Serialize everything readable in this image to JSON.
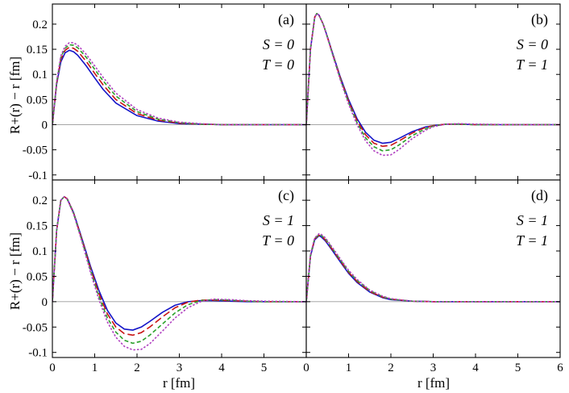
{
  "chart_data": {
    "type": "line",
    "shared_axes": {
      "xlabel": "r [fm]",
      "ylabel": "R+(r) − r [fm]",
      "xlim": [
        0,
        6
      ],
      "ylim": [
        -0.11,
        0.24
      ],
      "x_ticks": [
        0,
        1,
        2,
        3,
        4,
        5,
        6
      ],
      "y_ticks": [
        -0.1,
        -0.05,
        0,
        0.05,
        0.1,
        0.15,
        0.2
      ],
      "y_tick_labels": [
        "-0.1",
        "-0.05",
        "0",
        "0.05",
        "0.1",
        "0.15",
        "0.2"
      ]
    },
    "series_styles": [
      {
        "color": "#1414c8",
        "dash": "none"
      },
      {
        "color": "#c81414",
        "dash": "9,4"
      },
      {
        "color": "#2aa02a",
        "dash": "5,3"
      },
      {
        "color": "#b040c0",
        "dash": "2.5,2"
      }
    ],
    "panels": [
      {
        "id": "a",
        "label": "(a)",
        "S_text": "S = 0",
        "T_text": "T = 0",
        "series": [
          {
            "x": [
              0,
              0.1,
              0.2,
              0.3,
              0.4,
              0.5,
              0.6,
              0.8,
              1.0,
              1.2,
              1.5,
              2.0,
              2.5,
              3.0,
              3.5,
              4.0,
              5.0,
              6.0
            ],
            "y": [
              0,
              0.08,
              0.125,
              0.143,
              0.148,
              0.145,
              0.138,
              0.117,
              0.093,
              0.07,
              0.043,
              0.018,
              0.007,
              0.002,
              0.001,
              0,
              0,
              0
            ]
          },
          {
            "x": [
              0,
              0.1,
              0.2,
              0.3,
              0.4,
              0.5,
              0.6,
              0.8,
              1.0,
              1.2,
              1.5,
              2.0,
              2.5,
              3.0,
              3.5,
              4.0,
              5.0,
              6.0
            ],
            "y": [
              0,
              0.082,
              0.13,
              0.148,
              0.154,
              0.152,
              0.146,
              0.126,
              0.102,
              0.079,
              0.05,
              0.022,
              0.009,
              0.003,
              0.001,
              0,
              0,
              0
            ]
          },
          {
            "x": [
              0,
              0.1,
              0.2,
              0.3,
              0.4,
              0.5,
              0.6,
              0.8,
              1.0,
              1.2,
              1.5,
              2.0,
              2.5,
              3.0,
              3.5,
              4.0,
              5.0,
              6.0
            ],
            "y": [
              0,
              0.084,
              0.134,
              0.152,
              0.159,
              0.158,
              0.153,
              0.134,
              0.11,
              0.087,
              0.057,
              0.026,
              0.011,
              0.004,
              0.001,
              0,
              0,
              0
            ]
          },
          {
            "x": [
              0,
              0.1,
              0.2,
              0.3,
              0.4,
              0.5,
              0.6,
              0.8,
              1.0,
              1.2,
              1.5,
              2.0,
              2.5,
              3.0,
              3.5,
              4.0,
              5.0,
              6.0
            ],
            "y": [
              0,
              0.086,
              0.137,
              0.156,
              0.163,
              0.163,
              0.158,
              0.14,
              0.117,
              0.094,
              0.063,
              0.03,
              0.013,
              0.005,
              0.002,
              0,
              0,
              0
            ]
          }
        ]
      },
      {
        "id": "b",
        "label": "(b)",
        "S_text": "S = 0",
        "T_text": "T = 1",
        "series": [
          {
            "x": [
              0,
              0.1,
              0.2,
              0.25,
              0.3,
              0.4,
              0.5,
              0.6,
              0.8,
              1.0,
              1.2,
              1.4,
              1.6,
              1.8,
              2.0,
              2.2,
              2.5,
              2.8,
              3.0,
              3.3,
              3.6,
              4.0,
              5.0,
              6.0
            ],
            "y": [
              0,
              0.15,
              0.214,
              0.221,
              0.218,
              0.2,
              0.175,
              0.148,
              0.096,
              0.05,
              0.012,
              -0.015,
              -0.031,
              -0.037,
              -0.035,
              -0.027,
              -0.014,
              -0.005,
              -0.002,
              0.001,
              0.001,
              0,
              0,
              0
            ]
          },
          {
            "x": [
              0,
              0.1,
              0.2,
              0.25,
              0.3,
              0.4,
              0.5,
              0.6,
              0.8,
              1.0,
              1.2,
              1.4,
              1.6,
              1.8,
              2.0,
              2.2,
              2.5,
              2.8,
              3.0,
              3.3,
              3.6,
              4.0,
              5.0,
              6.0
            ],
            "y": [
              0,
              0.15,
              0.214,
              0.221,
              0.218,
              0.2,
              0.174,
              0.147,
              0.094,
              0.047,
              0.008,
              -0.02,
              -0.037,
              -0.043,
              -0.041,
              -0.032,
              -0.017,
              -0.006,
              -0.002,
              0.001,
              0.001,
              0,
              0,
              0
            ]
          },
          {
            "x": [
              0,
              0.1,
              0.2,
              0.25,
              0.3,
              0.4,
              0.5,
              0.6,
              0.8,
              1.0,
              1.2,
              1.4,
              1.6,
              1.8,
              2.0,
              2.2,
              2.5,
              2.8,
              3.0,
              3.3,
              3.6,
              4.0,
              5.0,
              6.0
            ],
            "y": [
              0,
              0.15,
              0.214,
              0.221,
              0.218,
              0.2,
              0.174,
              0.146,
              0.092,
              0.044,
              0.004,
              -0.026,
              -0.044,
              -0.052,
              -0.05,
              -0.04,
              -0.022,
              -0.009,
              -0.003,
              0.001,
              0.001,
              0,
              0,
              0
            ]
          },
          {
            "x": [
              0,
              0.1,
              0.2,
              0.25,
              0.3,
              0.4,
              0.5,
              0.6,
              0.8,
              1.0,
              1.2,
              1.4,
              1.6,
              1.8,
              2.0,
              2.2,
              2.5,
              2.8,
              3.0,
              3.3,
              3.6,
              4.0,
              5.0,
              6.0
            ],
            "y": [
              0,
              0.15,
              0.214,
              0.221,
              0.218,
              0.2,
              0.173,
              0.145,
              0.09,
              0.041,
              0.0,
              -0.032,
              -0.052,
              -0.061,
              -0.06,
              -0.049,
              -0.028,
              -0.012,
              -0.004,
              0.001,
              0.002,
              0.001,
              0,
              0
            ]
          }
        ]
      },
      {
        "id": "c",
        "label": "(c)",
        "S_text": "S = 1",
        "T_text": "T = 0",
        "series": [
          {
            "x": [
              0,
              0.1,
              0.2,
              0.28,
              0.35,
              0.5,
              0.7,
              0.9,
              1.1,
              1.3,
              1.5,
              1.7,
              1.9,
              2.1,
              2.3,
              2.6,
              2.9,
              3.2,
              3.5,
              3.8,
              4.2,
              4.6,
              5.0,
              6.0
            ],
            "y": [
              0,
              0.14,
              0.2,
              0.207,
              0.203,
              0.176,
              0.124,
              0.07,
              0.022,
              -0.017,
              -0.042,
              -0.054,
              -0.056,
              -0.05,
              -0.039,
              -0.021,
              -0.007,
              0.0,
              0.002,
              0.002,
              0.001,
              0,
              0,
              0
            ]
          },
          {
            "x": [
              0,
              0.1,
              0.2,
              0.28,
              0.35,
              0.5,
              0.7,
              0.9,
              1.1,
              1.3,
              1.5,
              1.7,
              1.9,
              2.1,
              2.3,
              2.6,
              2.9,
              3.2,
              3.5,
              3.8,
              4.2,
              4.6,
              5.0,
              6.0
            ],
            "y": [
              0,
              0.14,
              0.2,
              0.207,
              0.203,
              0.175,
              0.122,
              0.066,
              0.016,
              -0.024,
              -0.05,
              -0.063,
              -0.066,
              -0.061,
              -0.05,
              -0.03,
              -0.012,
              -0.001,
              0.003,
              0.003,
              0.002,
              0.001,
              0,
              0
            ]
          },
          {
            "x": [
              0,
              0.1,
              0.2,
              0.28,
              0.35,
              0.5,
              0.7,
              0.9,
              1.1,
              1.3,
              1.5,
              1.7,
              1.9,
              2.1,
              2.3,
              2.6,
              2.9,
              3.2,
              3.5,
              3.8,
              4.2,
              4.6,
              5.0,
              6.0
            ],
            "y": [
              0,
              0.14,
              0.2,
              0.207,
              0.202,
              0.174,
              0.12,
              0.062,
              0.01,
              -0.032,
              -0.06,
              -0.076,
              -0.082,
              -0.078,
              -0.066,
              -0.044,
              -0.022,
              -0.006,
              0.002,
              0.004,
              0.003,
              0.001,
              0,
              0
            ]
          },
          {
            "x": [
              0,
              0.1,
              0.2,
              0.28,
              0.35,
              0.5,
              0.7,
              0.9,
              1.1,
              1.3,
              1.5,
              1.7,
              1.9,
              2.1,
              2.3,
              2.6,
              2.9,
              3.2,
              3.5,
              3.8,
              4.2,
              4.6,
              5.0,
              6.0
            ],
            "y": [
              0,
              0.14,
              0.2,
              0.207,
              0.202,
              0.173,
              0.118,
              0.058,
              0.004,
              -0.04,
              -0.07,
              -0.088,
              -0.095,
              -0.094,
              -0.083,
              -0.058,
              -0.032,
              -0.012,
              0.0,
              0.005,
              0.004,
              0.002,
              0.001,
              0
            ]
          }
        ]
      },
      {
        "id": "d",
        "label": "(d)",
        "S_text": "S = 1",
        "T_text": "T = 1",
        "series": [
          {
            "x": [
              0,
              0.1,
              0.2,
              0.3,
              0.35,
              0.45,
              0.6,
              0.8,
              1.0,
              1.2,
              1.5,
              1.8,
              2.0,
              2.5,
              3.0,
              3.5,
              4.0,
              5.0,
              6.0
            ],
            "y": [
              0,
              0.09,
              0.122,
              0.13,
              0.128,
              0.12,
              0.103,
              0.079,
              0.056,
              0.038,
              0.019,
              0.008,
              0.004,
              0.001,
              0,
              0,
              0,
              0,
              0
            ]
          },
          {
            "x": [
              0,
              0.1,
              0.2,
              0.3,
              0.35,
              0.45,
              0.6,
              0.8,
              1.0,
              1.2,
              1.5,
              1.8,
              2.0,
              2.5,
              3.0,
              3.5,
              4.0,
              5.0,
              6.0
            ],
            "y": [
              0,
              0.091,
              0.124,
              0.131,
              0.13,
              0.122,
              0.105,
              0.081,
              0.058,
              0.04,
              0.02,
              0.009,
              0.005,
              0.001,
              0,
              0,
              0,
              0,
              0
            ]
          },
          {
            "x": [
              0,
              0.1,
              0.2,
              0.3,
              0.35,
              0.45,
              0.6,
              0.8,
              1.0,
              1.2,
              1.5,
              1.8,
              2.0,
              2.5,
              3.0,
              3.5,
              4.0,
              5.0,
              6.0
            ],
            "y": [
              0,
              0.092,
              0.125,
              0.132,
              0.131,
              0.124,
              0.107,
              0.083,
              0.06,
              0.042,
              0.022,
              0.01,
              0.005,
              0.001,
              0,
              0,
              0,
              0,
              0
            ]
          },
          {
            "x": [
              0,
              0.1,
              0.2,
              0.3,
              0.35,
              0.45,
              0.6,
              0.8,
              1.0,
              1.2,
              1.5,
              1.8,
              2.0,
              2.5,
              3.0,
              3.5,
              4.0,
              5.0,
              6.0
            ],
            "y": [
              0,
              0.093,
              0.126,
              0.134,
              0.133,
              0.126,
              0.109,
              0.085,
              0.062,
              0.044,
              0.023,
              0.011,
              0.006,
              0.001,
              0,
              0,
              0,
              0,
              0
            ]
          }
        ]
      }
    ]
  }
}
